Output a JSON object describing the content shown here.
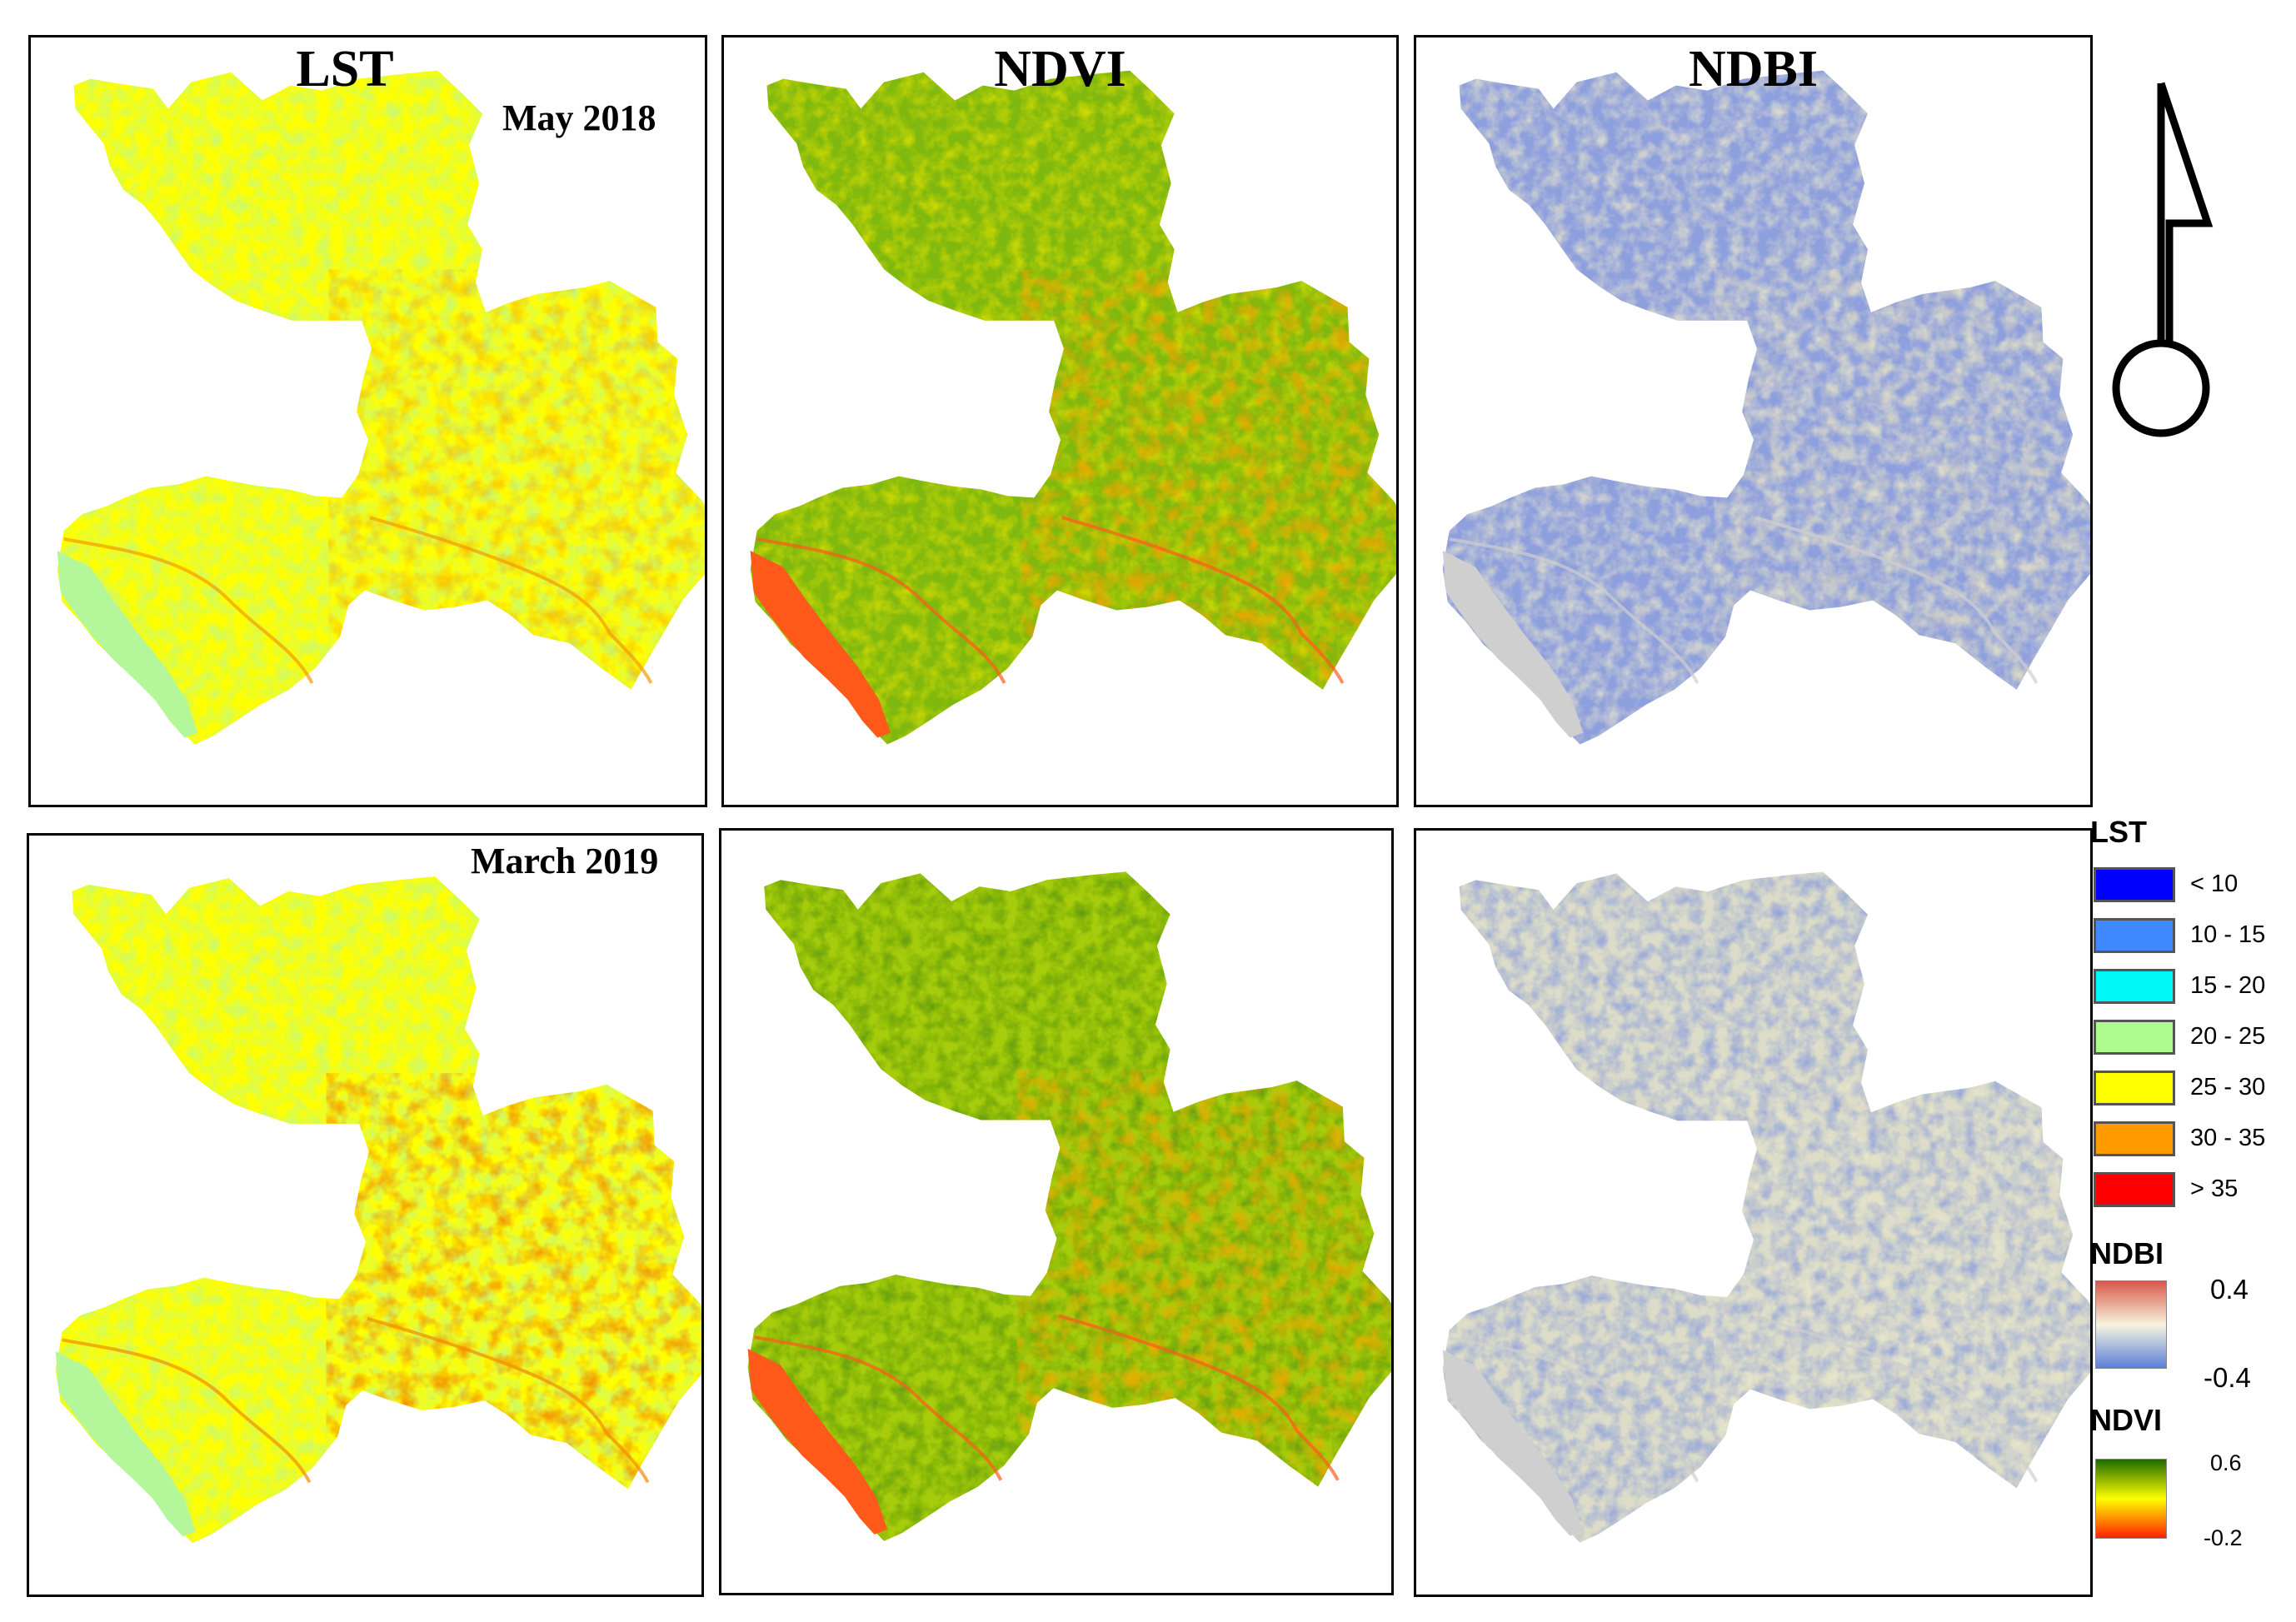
{
  "panels": {
    "top_row_date": "May 2018",
    "bottom_row_date": "March 2019",
    "columns": [
      {
        "index_name": "LST"
      },
      {
        "index_name": "NDVI"
      },
      {
        "index_name": "NDBI"
      }
    ]
  },
  "legend": {
    "lst": {
      "title": "LST",
      "classes": [
        {
          "label": "< 10",
          "color": "#0000ff"
        },
        {
          "label": "10 - 15",
          "color": "#3f88ff"
        },
        {
          "label": "15 - 20",
          "color": "#00f7f7"
        },
        {
          "label": "20 - 25",
          "color": "#aefc8e"
        },
        {
          "label": "25 - 30",
          "color": "#ffff00"
        },
        {
          "label": "30 - 35",
          "color": "#ff9a00"
        },
        {
          "label": "> 35",
          "color": "#ff0000"
        }
      ]
    },
    "ndbi": {
      "title": "NDBI",
      "max_label": "0.4",
      "min_label": "-0.4",
      "colors": {
        "high": "#d9574a",
        "mid": "#f7f4de",
        "low": "#5a7fd9"
      }
    },
    "ndvi": {
      "title": "NDVI",
      "max_label": "0.6",
      "min_label": "-0.2",
      "colors": {
        "high": "#1e6b00",
        "mid": "#ffff00",
        "low": "#ff2200"
      }
    }
  },
  "map_colors": {
    "lst_2018": {
      "base": "#ffff00",
      "patch": "#b4f79a",
      "hot": "#f59a00"
    },
    "lst_2019": {
      "base": "#ffff00",
      "patch": "#b4f79a",
      "hot": "#f28c00"
    },
    "ndvi_2018": {
      "base": "#7fb80e",
      "patch": "#e9e400",
      "hot": "#f5a300",
      "water": "#ff5a1a"
    },
    "ndvi_2019": {
      "base": "#a6cc0c",
      "patch": "#4f8f0c",
      "hot": "#f2a800",
      "water": "#ff5a1a"
    },
    "ndbi_2018": {
      "base": "#8e9fde",
      "patch": "#f2eec8",
      "hot": "#f5e9b8",
      "water": "#cfcfcf"
    },
    "ndbi_2019": {
      "base": "#dcdcc8",
      "patch": "#7d93e0",
      "hot": "#f4efcc",
      "water": "#cfcfcf"
    }
  },
  "north_arrow": {
    "icon": "north-arrow-icon"
  }
}
